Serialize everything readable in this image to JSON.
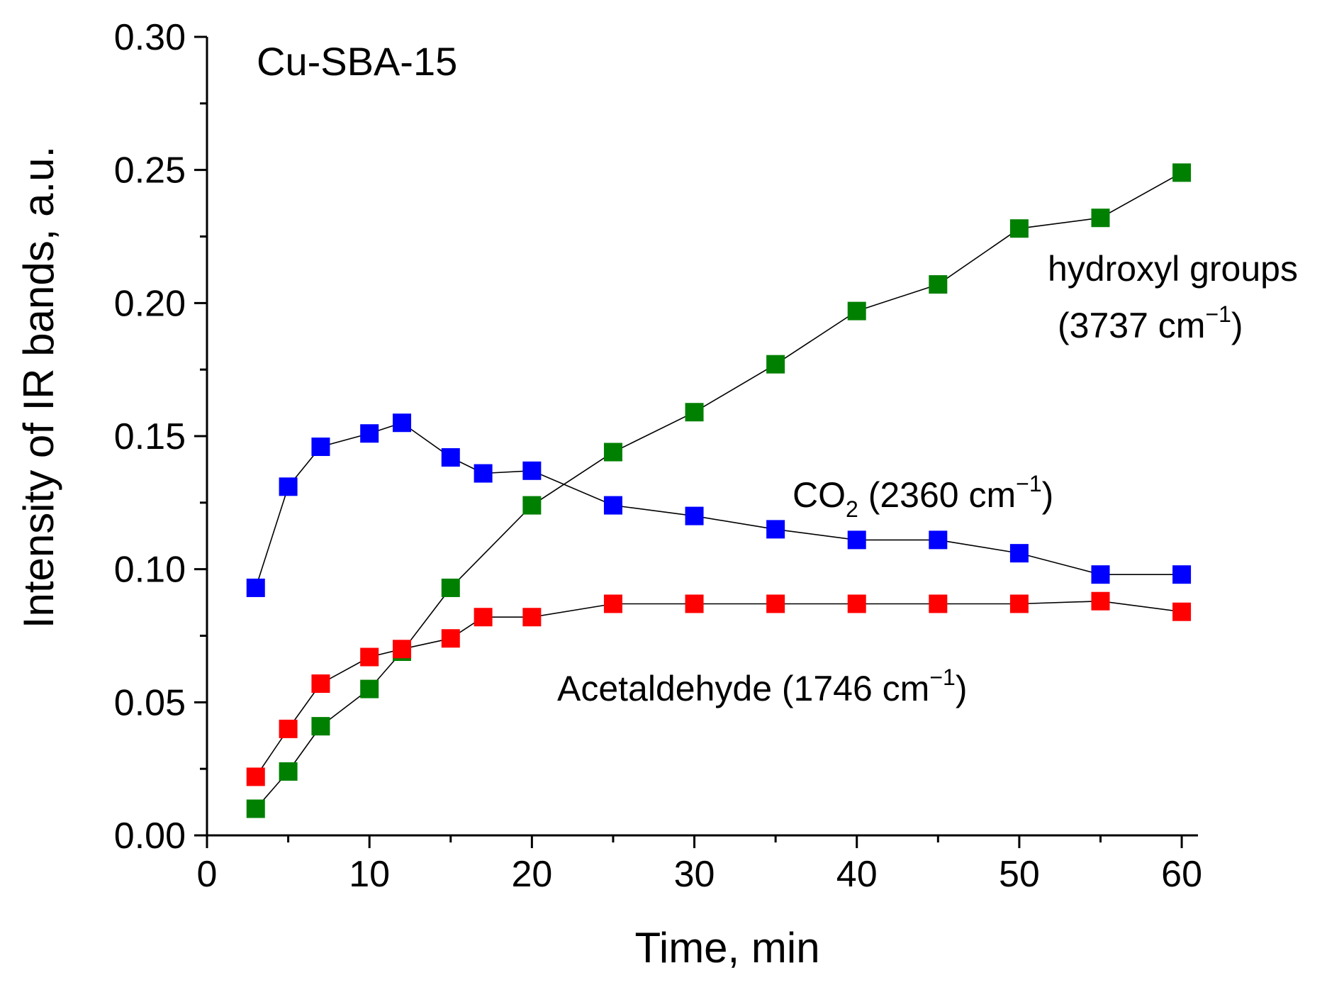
{
  "chart_data": {
    "type": "line",
    "title": "Cu-SBA-15",
    "xlabel": "Time, min",
    "ylabel": "Intensity of IR bands, a.u.",
    "xlim": [
      0,
      61
    ],
    "ylim": [
      0,
      0.3
    ],
    "xticks": [
      "0",
      "10",
      "20",
      "30",
      "40",
      "50",
      "60"
    ],
    "yticks": [
      "0.00",
      "0.05",
      "0.10",
      "0.15",
      "0.20",
      "0.25",
      "0.30"
    ],
    "grid": false,
    "marker": "square",
    "series": [
      {
        "name": "hydroxyl groups",
        "color": "#008000",
        "x": [
          3,
          5,
          7,
          10,
          12,
          15,
          20,
          25,
          30,
          35,
          40,
          45,
          50,
          55,
          60
        ],
        "values": [
          0.01,
          0.024,
          0.041,
          0.055,
          0.069,
          0.093,
          0.124,
          0.144,
          0.159,
          0.177,
          0.197,
          0.207,
          0.228,
          0.232,
          0.249
        ]
      },
      {
        "name": "CO2",
        "color": "#0000ff",
        "x": [
          3,
          5,
          7,
          10,
          12,
          15,
          17,
          20,
          25,
          30,
          35,
          40,
          45,
          50,
          55,
          60
        ],
        "values": [
          0.093,
          0.131,
          0.146,
          0.151,
          0.155,
          0.142,
          0.136,
          0.137,
          0.124,
          0.12,
          0.115,
          0.111,
          0.111,
          0.106,
          0.098,
          0.098
        ]
      },
      {
        "name": "Acetaldehyde",
        "color": "#ff0000",
        "x": [
          3,
          5,
          7,
          10,
          12,
          15,
          17,
          20,
          25,
          30,
          35,
          40,
          45,
          50,
          55,
          60
        ],
        "values": [
          0.022,
          0.04,
          0.057,
          0.067,
          0.07,
          0.074,
          0.082,
          0.082,
          0.087,
          0.087,
          0.087,
          0.087,
          0.087,
          0.087,
          0.088,
          0.084
        ]
      }
    ],
    "annotations": {
      "hydroxyl_line1": "hydroxyl groups",
      "hydroxyl_line2_pre": "(3737 cm",
      "hydroxyl_sup": "−1",
      "hydroxyl_line2_post": ")",
      "co2_pre": "CO",
      "co2_sub": "2",
      "co2_mid": " (2360 cm",
      "co2_sup": "−1",
      "co2_post": ")",
      "acet_pre": "Acetaldehyde (1746 cm",
      "acet_sup": "−1",
      "acet_post": ")"
    }
  }
}
